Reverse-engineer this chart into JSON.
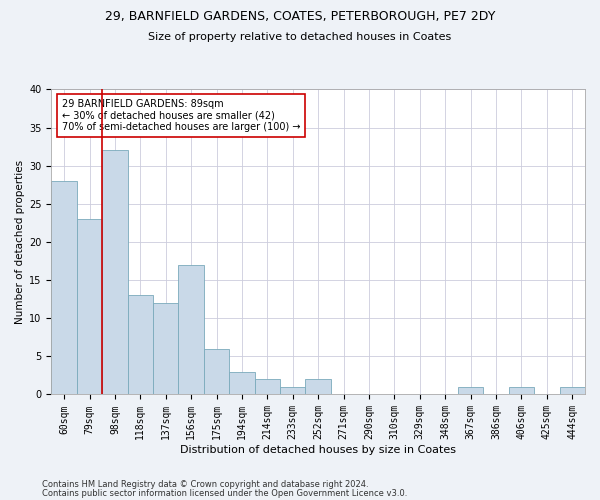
{
  "title1": "29, BARNFIELD GARDENS, COATES, PETERBOROUGH, PE7 2DY",
  "title2": "Size of property relative to detached houses in Coates",
  "xlabel": "Distribution of detached houses by size in Coates",
  "ylabel": "Number of detached properties",
  "categories": [
    "60sqm",
    "79sqm",
    "98sqm",
    "118sqm",
    "137sqm",
    "156sqm",
    "175sqm",
    "194sqm",
    "214sqm",
    "233sqm",
    "252sqm",
    "271sqm",
    "290sqm",
    "310sqm",
    "329sqm",
    "348sqm",
    "367sqm",
    "386sqm",
    "406sqm",
    "425sqm",
    "444sqm"
  ],
  "values": [
    28,
    23,
    32,
    13,
    12,
    17,
    6,
    3,
    2,
    1,
    2,
    0,
    0,
    0,
    0,
    0,
    1,
    0,
    1,
    0,
    1
  ],
  "bar_color": "#c9d9e8",
  "bar_edge_color": "#7aaabb",
  "bar_edge_width": 0.6,
  "vline_x_idx": 1,
  "vline_color": "#cc0000",
  "annotation_text": "29 BARNFIELD GARDENS: 89sqm\n← 30% of detached houses are smaller (42)\n70% of semi-detached houses are larger (100) →",
  "annotation_box_color": "#ffffff",
  "annotation_box_edge": "#cc0000",
  "ylim": [
    0,
    40
  ],
  "yticks": [
    0,
    5,
    10,
    15,
    20,
    25,
    30,
    35,
    40
  ],
  "footer1": "Contains HM Land Registry data © Crown copyright and database right 2024.",
  "footer2": "Contains public sector information licensed under the Open Government Licence v3.0.",
  "bg_color": "#eef2f7",
  "plot_bg_color": "#ffffff",
  "grid_color": "#ccccdd",
  "title1_fontsize": 9,
  "title2_fontsize": 8,
  "xlabel_fontsize": 8,
  "ylabel_fontsize": 7.5,
  "tick_fontsize": 7,
  "ann_fontsize": 7,
  "footer_fontsize": 6
}
